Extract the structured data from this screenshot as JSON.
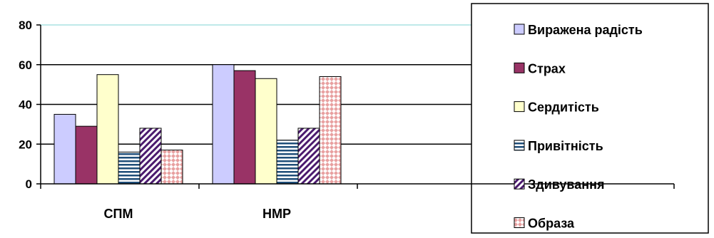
{
  "chart_data": {
    "type": "bar",
    "categories": [
      "СПМ",
      "НМР"
    ],
    "series": [
      {
        "name": "Виражена радість",
        "values": [
          35,
          60
        ],
        "color": "#ccccff",
        "pattern": "solid"
      },
      {
        "name": "Страх",
        "values": [
          29,
          57
        ],
        "color": "#993366",
        "pattern": "solid"
      },
      {
        "name": "Сердитість",
        "values": [
          55,
          53
        ],
        "color": "#ffffcc",
        "pattern": "solid"
      },
      {
        "name": "Привітність",
        "values": [
          16,
          22
        ],
        "color": "#1f4e79",
        "pattern": "horizontal-stripes"
      },
      {
        "name": "Здивування",
        "values": [
          28,
          28
        ],
        "color": "#4b1a6e",
        "pattern": "diagonal-stripes"
      },
      {
        "name": "Образа",
        "values": [
          17,
          54
        ],
        "color": "#e8a0a0",
        "pattern": "diamond-dots"
      }
    ],
    "y_ticks": [
      "0",
      "20",
      "40",
      "60",
      "80"
    ],
    "ylim": [
      0,
      80
    ],
    "title": "",
    "xlabel": "",
    "ylabel": "",
    "grid": true,
    "legend_position": "right"
  }
}
